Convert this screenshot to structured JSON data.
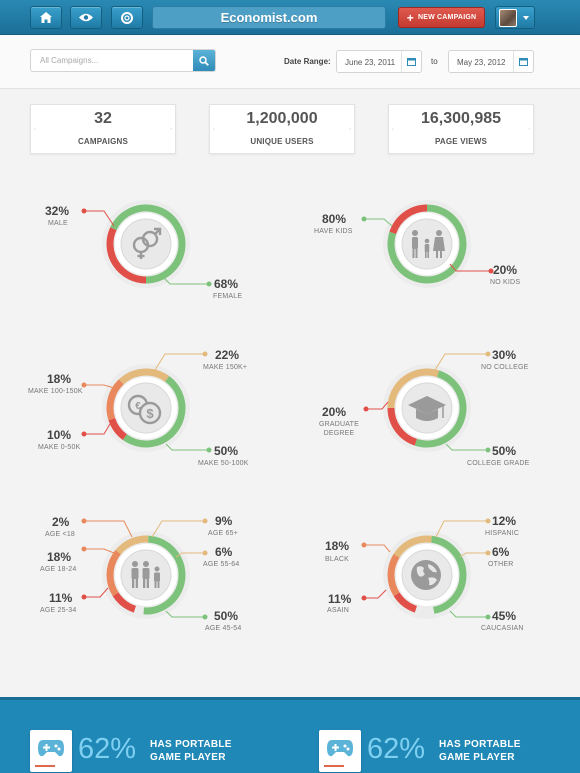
{
  "topbar": {
    "nav_icons": [
      "home-icon",
      "eye-icon",
      "lifebuoy-icon"
    ],
    "title": "Economist.com",
    "new_campaign": "NEW CAMPAIGN"
  },
  "filters": {
    "search_placeholder": "All Campaigns...",
    "date_range_label": "Date Range:",
    "date_from": "June 23, 2011",
    "to_label": "to",
    "date_to": "May 23, 2012"
  },
  "stats": [
    {
      "value": "32",
      "label": "CAMPAIGNS"
    },
    {
      "value": "1,200,000",
      "label": "UNIQUE USERS"
    },
    {
      "value": "16,300,985",
      "label": "PAGE VIEWS"
    }
  ],
  "colors": {
    "green": "#7cc27a",
    "red": "#e05048",
    "orange": "#e8885c",
    "tan": "#e3b97c",
    "blue": "#1f88b7"
  },
  "gender": {
    "icon": "gender-icon",
    "male": {
      "pct": "32%",
      "label": "MALE"
    },
    "female": {
      "pct": "68%",
      "label": "FEMALE"
    }
  },
  "kids": {
    "icon": "family-icon",
    "have": {
      "pct": "80%",
      "label": "HAVE KIDS"
    },
    "no": {
      "pct": "20%",
      "label": "NO KIDS"
    }
  },
  "income": {
    "icon": "coins-icon",
    "make150": {
      "pct": "22%",
      "label": "MAKE 150K+"
    },
    "make100": {
      "pct": "18%",
      "label": "MAKE 100-150K"
    },
    "make0": {
      "pct": "10%",
      "label": "MAKE 0-50K"
    },
    "make50": {
      "pct": "50%",
      "label": "MAKE 50-100K"
    }
  },
  "education": {
    "icon": "graduation-cap-icon",
    "nocollege": {
      "pct": "30%",
      "label": "NO COLLEGE"
    },
    "graduate": {
      "pct": "20%",
      "label_line1": "GRADUATE",
      "label_line2": "DEGREE"
    },
    "college": {
      "pct": "50%",
      "label": "COLLEGE GRADE"
    }
  },
  "age": {
    "icon": "people-icon",
    "a18": {
      "pct": "2%",
      "label": "AGE <18"
    },
    "a18_24": {
      "pct": "18%",
      "label": "AGE 18-24"
    },
    "a25_34": {
      "pct": "11%",
      "label": "AGE 25-34"
    },
    "a65": {
      "pct": "9%",
      "label": "AGE 65+"
    },
    "a55_64": {
      "pct": "6%",
      "label": "AGE 55-64"
    },
    "a45_54": {
      "pct": "50%",
      "label": "AGE 45-54"
    }
  },
  "ethnicity": {
    "icon": "globe-icon",
    "black": {
      "pct": "18%",
      "label": "BLACK"
    },
    "asian": {
      "pct": "11%",
      "label": "ASAIN"
    },
    "hispanic": {
      "pct": "12%",
      "label": "HISPANIC"
    },
    "other": {
      "pct": "6%",
      "label": "OTHER"
    },
    "caucasian": {
      "pct": "45%",
      "label": "CAUCASIAN"
    }
  },
  "bottom": [
    {
      "icon": "gamepad-icon",
      "pct": "62%",
      "line1": "HAS PORTABLE",
      "line2": "GAME PLAYER"
    },
    {
      "icon": "gamepad-icon",
      "pct": "62%",
      "line1": "HAS PORTABLE",
      "line2": "GAME PLAYER"
    }
  ]
}
